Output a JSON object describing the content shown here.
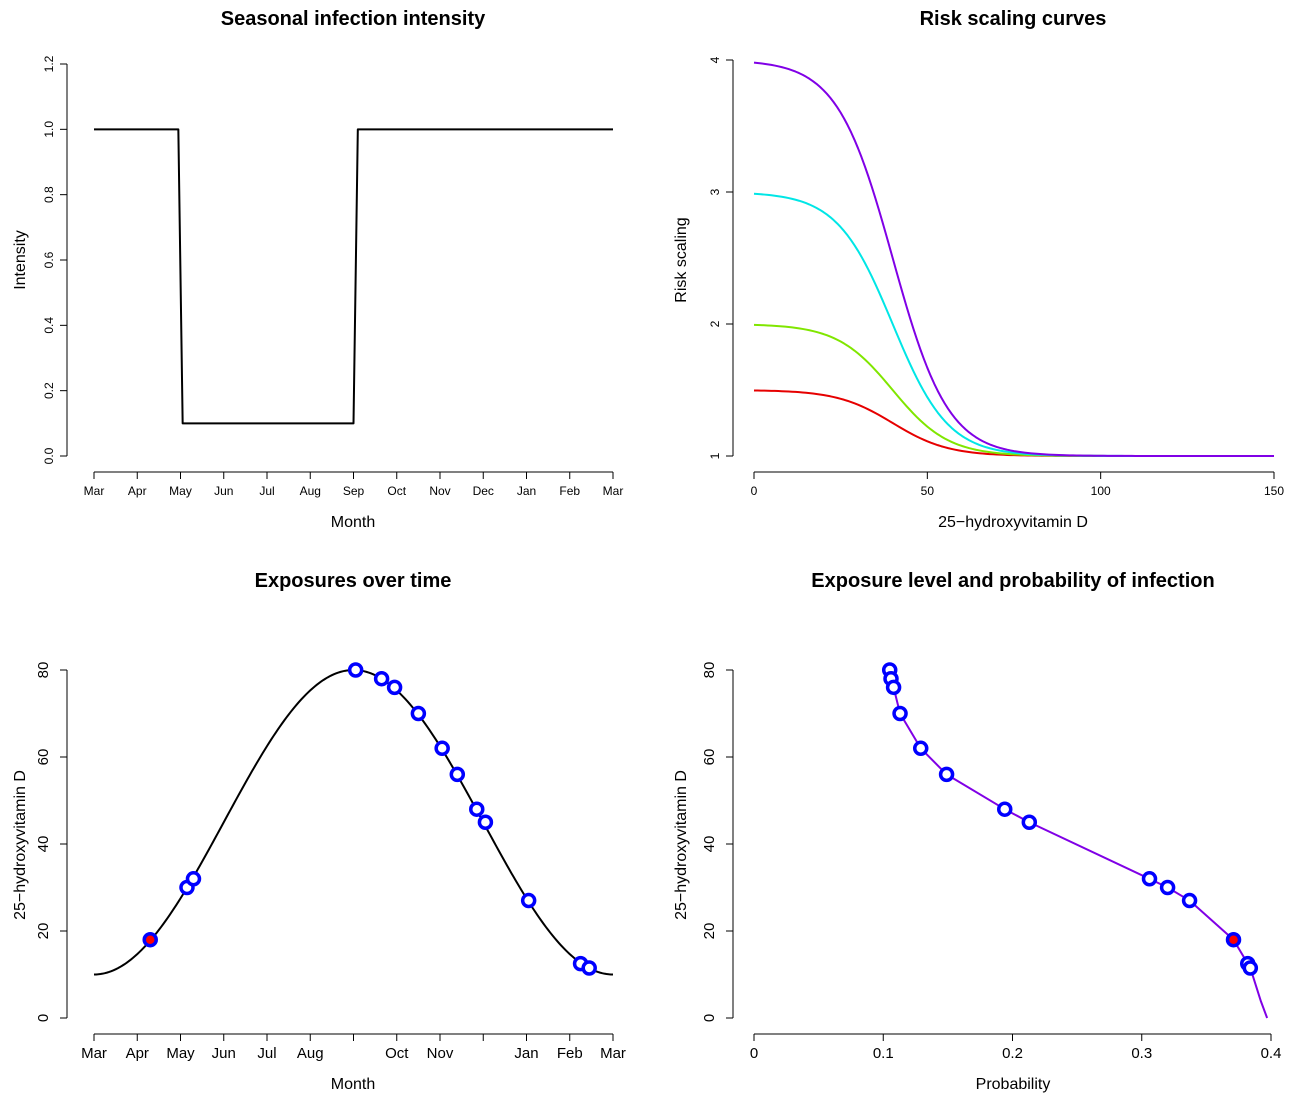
{
  "chart_data": [
    {
      "id": "intensity",
      "type": "line",
      "title": "Seasonal infection intensity",
      "xlabel": "Month",
      "ylabel": "Intensity",
      "x_ticks": [
        "Mar",
        "Apr",
        "May",
        "Jun",
        "Jul",
        "Aug",
        "Sep",
        "Oct",
        "Nov",
        "Dec",
        "Jan",
        "Feb",
        "Mar"
      ],
      "xlim": [
        0,
        12
      ],
      "y_ticks": [
        "0.0",
        "0.2",
        "0.4",
        "0.6",
        "0.8",
        "1.0",
        "1.2"
      ],
      "ylim": [
        0,
        1.2
      ],
      "series": [
        {
          "color": "#000000",
          "x": [
            0,
            1.95,
            2.05,
            6.0,
            6.1,
            12
          ],
          "y": [
            1.0,
            1.0,
            0.1,
            0.1,
            1.0,
            1.0
          ]
        }
      ]
    },
    {
      "id": "risk",
      "type": "line",
      "title": "Risk scaling curves",
      "xlabel": "25−hydroxyvitamin D",
      "ylabel": "Risk scaling",
      "x_ticks": [
        "0",
        "50",
        "100",
        "150"
      ],
      "xlim": [
        0,
        150
      ],
      "y_ticks": [
        "1",
        "2",
        "3",
        "4"
      ],
      "ylim": [
        1,
        4
      ],
      "curve": {
        "midpoint": 40,
        "scale": 8
      },
      "series": [
        {
          "color": "#E60000",
          "max": 1.5
        },
        {
          "color": "#80E600",
          "max": 2.0
        },
        {
          "color": "#00E6E6",
          "max": 3.0
        },
        {
          "color": "#8000E6",
          "max": 4.0
        }
      ]
    },
    {
      "id": "exposures",
      "type": "scatter",
      "title": "Exposures over time",
      "xlabel": "Month",
      "ylabel": "25−hydroxyvitamin D",
      "x_ticks": [
        "Mar",
        "Apr",
        "May",
        "Jun",
        "Jul",
        "Aug",
        "",
        "Oct",
        "Nov",
        "",
        "Jan",
        "Feb",
        "Mar"
      ],
      "xlim": [
        0,
        12
      ],
      "y_ticks": [
        "0",
        "20",
        "40",
        "60",
        "80"
      ],
      "ylim": [
        0,
        80
      ],
      "curve": {
        "min": 10,
        "max": 80,
        "peak_month": 6
      },
      "points": [
        {
          "x": 1.3,
          "y": 18,
          "highlight": true
        },
        {
          "x": 2.15,
          "y": 30
        },
        {
          "x": 2.3,
          "y": 32
        },
        {
          "x": 6.05,
          "y": 80
        },
        {
          "x": 6.65,
          "y": 78
        },
        {
          "x": 6.95,
          "y": 76
        },
        {
          "x": 7.5,
          "y": 70
        },
        {
          "x": 8.05,
          "y": 62
        },
        {
          "x": 8.4,
          "y": 56
        },
        {
          "x": 8.85,
          "y": 48
        },
        {
          "x": 9.05,
          "y": 45
        },
        {
          "x": 10.05,
          "y": 27
        },
        {
          "x": 11.25,
          "y": 12.5
        },
        {
          "x": 11.45,
          "y": 11.5
        }
      ]
    },
    {
      "id": "probability",
      "type": "scatter",
      "title": "Exposure level and probability of infection",
      "xlabel": "Probability",
      "ylabel": "25−hydroxyvitamin D",
      "x_ticks": [
        "0",
        "0.1",
        "0.2",
        "0.3",
        "0.4"
      ],
      "xlim": [
        0,
        0.4
      ],
      "y_ticks": [
        "0",
        "20",
        "40",
        "60",
        "80"
      ],
      "ylim": [
        0,
        80
      ],
      "line_color": "#8000E6",
      "points": [
        {
          "x": 0.105,
          "y": 80
        },
        {
          "x": 0.106,
          "y": 78
        },
        {
          "x": 0.108,
          "y": 76
        },
        {
          "x": 0.113,
          "y": 70
        },
        {
          "x": 0.129,
          "y": 62
        },
        {
          "x": 0.149,
          "y": 56
        },
        {
          "x": 0.194,
          "y": 48
        },
        {
          "x": 0.213,
          "y": 45
        },
        {
          "x": 0.306,
          "y": 32
        },
        {
          "x": 0.32,
          "y": 30
        },
        {
          "x": 0.337,
          "y": 27
        },
        {
          "x": 0.371,
          "y": 18,
          "highlight": true
        },
        {
          "x": 0.382,
          "y": 12.5
        },
        {
          "x": 0.384,
          "y": 11.5
        }
      ]
    }
  ]
}
